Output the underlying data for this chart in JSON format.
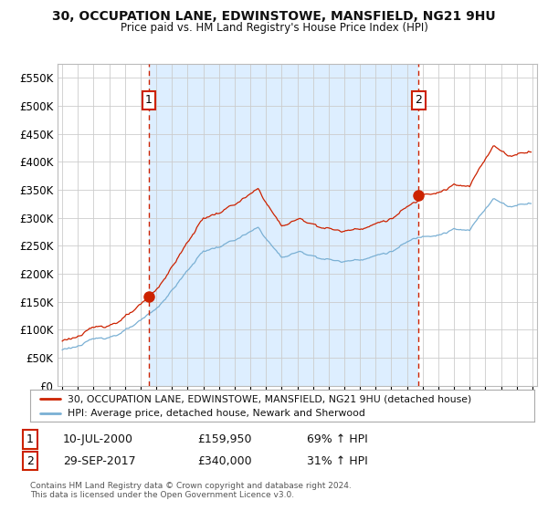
{
  "title": "30, OCCUPATION LANE, EDWINSTOWE, MANSFIELD, NG21 9HU",
  "subtitle": "Price paid vs. HM Land Registry's House Price Index (HPI)",
  "legend_line1": "30, OCCUPATION LANE, EDWINSTOWE, MANSFIELD, NG21 9HU (detached house)",
  "legend_line2": "HPI: Average price, detached house, Newark and Sherwood",
  "annotation1_date": "10-JUL-2000",
  "annotation1_price": "£159,950",
  "annotation1_hpi": "69% ↑ HPI",
  "annotation2_date": "29-SEP-2017",
  "annotation2_price": "£340,000",
  "annotation2_hpi": "31% ↑ HPI",
  "footer": "Contains HM Land Registry data © Crown copyright and database right 2024.\nThis data is licensed under the Open Government Licence v3.0.",
  "sale1_year": 2000.53,
  "sale1_value": 159950,
  "sale2_year": 2017.75,
  "sale2_value": 340000,
  "line_color_red": "#cc2200",
  "line_color_blue": "#7ab0d4",
  "vline_color": "#cc2200",
  "shade_color": "#ddeeff",
  "background_color": "#ffffff",
  "grid_color": "#cccccc",
  "ylim": [
    0,
    575000
  ],
  "xlim_start": 1994.7,
  "xlim_end": 2025.3
}
